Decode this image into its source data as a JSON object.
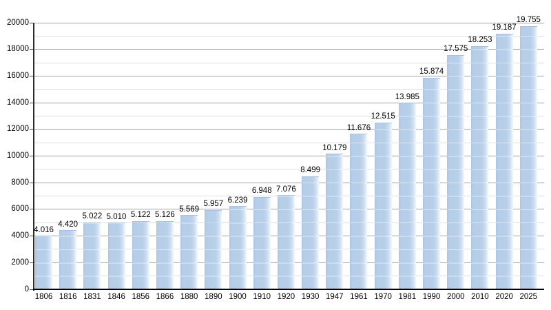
{
  "chart_data": {
    "type": "bar",
    "title": "",
    "xlabel": "",
    "ylabel": "",
    "categories": [
      "1806",
      "1816",
      "1831",
      "1846",
      "1856",
      "1866",
      "1880",
      "1890",
      "1900",
      "1910",
      "1920",
      "1930",
      "1947",
      "1961",
      "1970",
      "1981",
      "1990",
      "2000",
      "2010",
      "2020",
      "2025"
    ],
    "values": [
      4016,
      4420,
      5022,
      5010,
      5122,
      5126,
      5569,
      5957,
      6239,
      6948,
      7076,
      8499,
      10179,
      11676,
      12515,
      13985,
      15874,
      17575,
      18253,
      19187,
      19755
    ],
    "bar_labels": [
      "4.016",
      "4.420",
      "5.022",
      "5.010",
      "5.122",
      "5.126",
      "5.569",
      "5.957",
      "6.239",
      "6.948",
      "7.076",
      "8.499",
      "10.179",
      "11.676",
      "12.515",
      "13.985",
      "15.874",
      "17.575",
      "18.253",
      "19.187",
      "19.755"
    ],
    "ylim": [
      0,
      20000
    ],
    "y_major_step": 2000,
    "y_minor_step": 1000,
    "y_tick_labels": [
      "0",
      "2000",
      "4000",
      "6000",
      "8000",
      "10000",
      "12000",
      "14000",
      "16000",
      "18000",
      "20000"
    ],
    "grid": true,
    "legend_position": "none"
  },
  "colors": {
    "background": "#ffffff",
    "bar_main": "#b7cfe8",
    "bar_edge_dark": "#a9c5e2",
    "bar_highlight": "#e9f1f9",
    "grid_major": "#a3a3a3",
    "grid_minor": "#dedede",
    "axis_y": "#2b2b2b",
    "axis_x": "#000000",
    "text": "#000000"
  }
}
